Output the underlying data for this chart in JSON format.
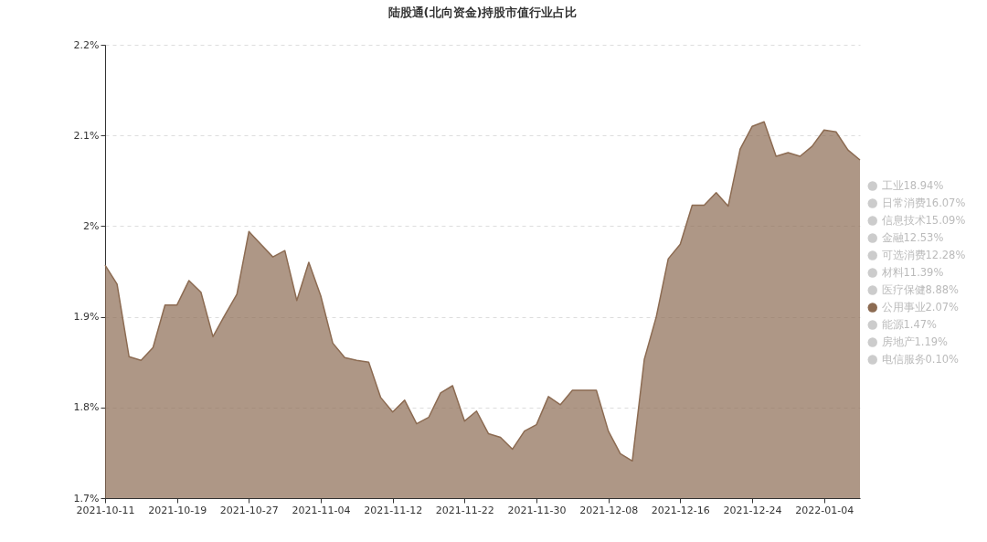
{
  "chart_data": {
    "type": "area",
    "title": "陆股通(北向资金)持股市值行业占比",
    "categories": [
      "2021-10-11",
      null,
      null,
      null,
      null,
      null,
      "2021-10-19",
      null,
      null,
      null,
      null,
      null,
      "2021-10-27",
      null,
      null,
      null,
      null,
      null,
      "2021-11-04",
      null,
      null,
      null,
      null,
      null,
      "2021-11-12",
      null,
      null,
      null,
      null,
      null,
      "2021-11-22",
      null,
      null,
      null,
      null,
      null,
      "2021-11-30",
      null,
      null,
      null,
      null,
      null,
      "2021-12-08",
      null,
      null,
      null,
      null,
      null,
      "2021-12-16",
      null,
      null,
      null,
      null,
      null,
      "2021-12-24",
      null,
      null,
      null,
      null,
      null,
      "2022-01-04",
      null,
      null,
      null
    ],
    "series": [
      {
        "name": "工业18.94%",
        "color": "#cccccc",
        "values": [
          null,
          null,
          null,
          null,
          null,
          null,
          null,
          null,
          null,
          null,
          null,
          null,
          null,
          null,
          null,
          null,
          null,
          null,
          null,
          null,
          null,
          null,
          null,
          null,
          null,
          null,
          null,
          null,
          null,
          null,
          null,
          null,
          null,
          null,
          null,
          null,
          null,
          null,
          null,
          null,
          null,
          null,
          null,
          null,
          null,
          null,
          null,
          null,
          null,
          null,
          null,
          null,
          null,
          null,
          null,
          null,
          null,
          null,
          null,
          null,
          null,
          null,
          null,
          null
        ]
      },
      {
        "name": "日常消费16.07%",
        "color": "#cccccc",
        "values": [
          null,
          null,
          null,
          null,
          null,
          null,
          null,
          null,
          null,
          null,
          null,
          null,
          null,
          null,
          null,
          null,
          null,
          null,
          null,
          null,
          null,
          null,
          null,
          null,
          null,
          null,
          null,
          null,
          null,
          null,
          null,
          null,
          null,
          null,
          null,
          null,
          null,
          null,
          null,
          null,
          null,
          null,
          null,
          null,
          null,
          null,
          null,
          null,
          null,
          null,
          null,
          null,
          null,
          null,
          null,
          null,
          null,
          null,
          null,
          null,
          null,
          null,
          null,
          null
        ]
      },
      {
        "name": "信息技术15.09%",
        "color": "#cccccc",
        "values": [
          null,
          null,
          null,
          null,
          null,
          null,
          null,
          null,
          null,
          null,
          null,
          null,
          null,
          null,
          null,
          null,
          null,
          null,
          null,
          null,
          null,
          null,
          null,
          null,
          null,
          null,
          null,
          null,
          null,
          null,
          null,
          null,
          null,
          null,
          null,
          null,
          null,
          null,
          null,
          null,
          null,
          null,
          null,
          null,
          null,
          null,
          null,
          null,
          null,
          null,
          null,
          null,
          null,
          null,
          null,
          null,
          null,
          null,
          null,
          null,
          null,
          null,
          null,
          null
        ]
      },
      {
        "name": "金融12.53%",
        "color": "#cccccc",
        "values": [
          null,
          null,
          null,
          null,
          null,
          null,
          null,
          null,
          null,
          null,
          null,
          null,
          null,
          null,
          null,
          null,
          null,
          null,
          null,
          null,
          null,
          null,
          null,
          null,
          null,
          null,
          null,
          null,
          null,
          null,
          null,
          null,
          null,
          null,
          null,
          null,
          null,
          null,
          null,
          null,
          null,
          null,
          null,
          null,
          null,
          null,
          null,
          null,
          null,
          null,
          null,
          null,
          null,
          null,
          null,
          null,
          null,
          null,
          null,
          null,
          null,
          null,
          null,
          null
        ]
      },
      {
        "name": "可选消费12.28%",
        "color": "#cccccc",
        "values": [
          null,
          null,
          null,
          null,
          null,
          null,
          null,
          null,
          null,
          null,
          null,
          null,
          null,
          null,
          null,
          null,
          null,
          null,
          null,
          null,
          null,
          null,
          null,
          null,
          null,
          null,
          null,
          null,
          null,
          null,
          null,
          null,
          null,
          null,
          null,
          null,
          null,
          null,
          null,
          null,
          null,
          null,
          null,
          null,
          null,
          null,
          null,
          null,
          null,
          null,
          null,
          null,
          null,
          null,
          null,
          null,
          null,
          null,
          null,
          null,
          null,
          null,
          null,
          null
        ]
      },
      {
        "name": "材料11.39%",
        "color": "#cccccc",
        "values": [
          null,
          null,
          null,
          null,
          null,
          null,
          null,
          null,
          null,
          null,
          null,
          null,
          null,
          null,
          null,
          null,
          null,
          null,
          null,
          null,
          null,
          null,
          null,
          null,
          null,
          null,
          null,
          null,
          null,
          null,
          null,
          null,
          null,
          null,
          null,
          null,
          null,
          null,
          null,
          null,
          null,
          null,
          null,
          null,
          null,
          null,
          null,
          null,
          null,
          null,
          null,
          null,
          null,
          null,
          null,
          null,
          null,
          null,
          null,
          null,
          null,
          null,
          null,
          null
        ]
      },
      {
        "name": "医疗保健8.88%",
        "color": "#cccccc",
        "values": [
          null,
          null,
          null,
          null,
          null,
          null,
          null,
          null,
          null,
          null,
          null,
          null,
          null,
          null,
          null,
          null,
          null,
          null,
          null,
          null,
          null,
          null,
          null,
          null,
          null,
          null,
          null,
          null,
          null,
          null,
          null,
          null,
          null,
          null,
          null,
          null,
          null,
          null,
          null,
          null,
          null,
          null,
          null,
          null,
          null,
          null,
          null,
          null,
          null,
          null,
          null,
          null,
          null,
          null,
          null,
          null,
          null,
          null,
          null,
          null,
          null,
          null,
          null,
          null
        ]
      },
      {
        "name": "公用事业2.07%",
        "color": "#8c6b52",
        "values": [
          1.957,
          1.936,
          1.856,
          1.852,
          1.866,
          1.913,
          1.913,
          1.94,
          1.927,
          1.878,
          1.902,
          1.925,
          1.994,
          1.98,
          1.966,
          1.973,
          1.918,
          1.96,
          1.923,
          1.871,
          1.855,
          1.852,
          1.85,
          1.811,
          1.795,
          1.808,
          1.782,
          1.789,
          1.816,
          1.824,
          1.785,
          1.796,
          1.771,
          1.767,
          1.754,
          1.774,
          1.781,
          1.812,
          1.803,
          1.819,
          1.819,
          1.819,
          1.774,
          1.749,
          1.741,
          1.853,
          1.9,
          1.964,
          1.98,
          2.023,
          2.023,
          2.037,
          2.022,
          2.085,
          2.11,
          2.115,
          2.077,
          2.081,
          2.077,
          2.088,
          2.106,
          2.104,
          2.084,
          2.073
        ]
      },
      {
        "name": "能源1.47%",
        "color": "#cccccc",
        "values": [
          null,
          null,
          null,
          null,
          null,
          null,
          null,
          null,
          null,
          null,
          null,
          null,
          null,
          null,
          null,
          null,
          null,
          null,
          null,
          null,
          null,
          null,
          null,
          null,
          null,
          null,
          null,
          null,
          null,
          null,
          null,
          null,
          null,
          null,
          null,
          null,
          null,
          null,
          null,
          null,
          null,
          null,
          null,
          null,
          null,
          null,
          null,
          null,
          null,
          null,
          null,
          null,
          null,
          null,
          null,
          null,
          null,
          null,
          null,
          null,
          null,
          null,
          null,
          null
        ]
      },
      {
        "name": "房地产1.19%",
        "color": "#cccccc",
        "values": [
          null,
          null,
          null,
          null,
          null,
          null,
          null,
          null,
          null,
          null,
          null,
          null,
          null,
          null,
          null,
          null,
          null,
          null,
          null,
          null,
          null,
          null,
          null,
          null,
          null,
          null,
          null,
          null,
          null,
          null,
          null,
          null,
          null,
          null,
          null,
          null,
          null,
          null,
          null,
          null,
          null,
          null,
          null,
          null,
          null,
          null,
          null,
          null,
          null,
          null,
          null,
          null,
          null,
          null,
          null,
          null,
          null,
          null,
          null,
          null,
          null,
          null,
          null,
          null
        ]
      },
      {
        "name": "电信服务0.10%",
        "color": "#cccccc",
        "values": [
          null,
          null,
          null,
          null,
          null,
          null,
          null,
          null,
          null,
          null,
          null,
          null,
          null,
          null,
          null,
          null,
          null,
          null,
          null,
          null,
          null,
          null,
          null,
          null,
          null,
          null,
          null,
          null,
          null,
          null,
          null,
          null,
          null,
          null,
          null,
          null,
          null,
          null,
          null,
          null,
          null,
          null,
          null,
          null,
          null,
          null,
          null,
          null,
          null,
          null,
          null,
          null,
          null,
          null,
          null,
          null,
          null,
          null,
          null,
          null,
          null,
          null,
          null,
          null
        ]
      }
    ],
    "ylim": [
      1.7,
      2.2
    ],
    "yticks": [
      {
        "value": 1.7,
        "label": "1.7%"
      },
      {
        "value": 1.8,
        "label": "1.8%"
      },
      {
        "value": 1.9,
        "label": "1.9%"
      },
      {
        "value": 2.0,
        "label": "2%"
      },
      {
        "value": 2.1,
        "label": "2.1%"
      },
      {
        "value": 2.2,
        "label": "2.2%"
      }
    ],
    "grid": "y",
    "legend": "right",
    "marker": "none"
  }
}
